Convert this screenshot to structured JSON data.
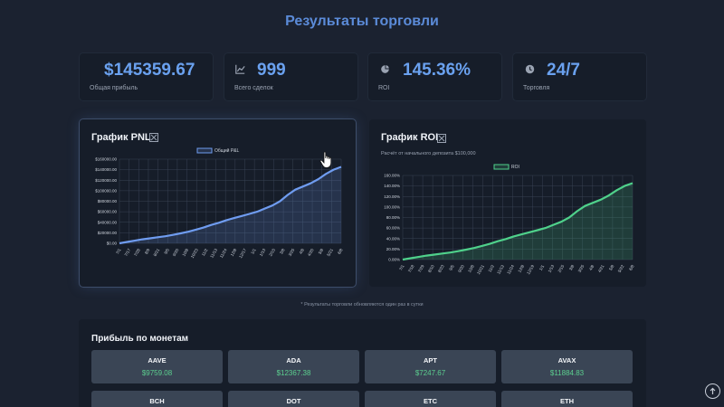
{
  "page": {
    "title": "Результаты торговли"
  },
  "stats": [
    {
      "icon": "dollar-icon",
      "value": "$145359.67",
      "label": "Общая прибыль"
    },
    {
      "icon": "bar-chart-icon",
      "value": "999",
      "label": "Всего сделок"
    },
    {
      "icon": "pie-chart-icon",
      "value": "145.36%",
      "label": "ROI"
    },
    {
      "icon": "clock-icon",
      "value": "24/7",
      "label": "Торговля"
    }
  ],
  "pnl_chart": {
    "title": "График PNL",
    "legend": "Общий P&L",
    "y_ticks": [
      "$0.00",
      "$20000.00",
      "$40000.00",
      "$60000.00",
      "$80000.00",
      "$100000.00",
      "$120000.00",
      "$140000.00",
      "$160000.00"
    ],
    "x_ticks": [
      "7/1",
      "7/17",
      "7/28",
      "8/9",
      "8/21",
      "9/5",
      "9/20",
      "10/8",
      "10/23",
      "11/2",
      "11/13",
      "11/24",
      "12/8",
      "12/17",
      "1/1",
      "1/13",
      "2/15",
      "3/8",
      "3/25",
      "4/8",
      "4/20",
      "5/8",
      "5/21",
      "6/8"
    ]
  },
  "roi_chart": {
    "title": "График ROI",
    "subtitle": "Расчёт от начального депозита $100,000",
    "legend": "ROI",
    "y_ticks": [
      "0.00%",
      "20.00%",
      "40.00%",
      "60.00%",
      "80.00%",
      "100.00%",
      "120.00%",
      "140.00%",
      "160.00%"
    ],
    "x_ticks": [
      "7/1",
      "7/18",
      "7/29",
      "8/10",
      "8/23",
      "9/5",
      "9/20",
      "10/8",
      "10/21",
      "11/2",
      "11/13",
      "11/24",
      "12/8",
      "12/19",
      "1/1",
      "1/13",
      "2/15",
      "3/8",
      "3/25",
      "4/8",
      "4/21",
      "5/8",
      "5/22",
      "6/8"
    ]
  },
  "chart_data": [
    {
      "type": "area",
      "title": "График PNL",
      "series": [
        {
          "name": "Общий P&L",
          "values": [
            0,
            2500,
            5000,
            7500,
            9500,
            11500,
            13500,
            16000,
            19000,
            22000,
            26000,
            30000,
            35000,
            39000,
            44000,
            48000,
            52000,
            56000,
            60000,
            66000,
            72000,
            80000,
            92000,
            102000,
            108000,
            114000,
            122000,
            132000,
            140000,
            145360
          ]
        }
      ],
      "ylim": [
        0,
        160000
      ],
      "grid": true,
      "legend_position": "top"
    },
    {
      "type": "area",
      "title": "График ROI",
      "subtitle": "Расчёт от начального депозита $100,000",
      "series": [
        {
          "name": "ROI",
          "values": [
            0,
            2.5,
            5,
            7.5,
            9.5,
            11.5,
            13.5,
            16,
            19,
            22,
            26,
            30,
            35,
            39,
            44,
            48,
            52,
            56,
            60,
            66,
            72,
            80,
            92,
            102,
            108,
            114,
            122,
            132,
            140,
            145.36
          ]
        }
      ],
      "ylim": [
        0,
        160
      ],
      "grid": true,
      "legend_position": "top"
    }
  ],
  "coins": {
    "title": "Прибыль по монетам",
    "items": [
      {
        "name": "AAVE",
        "value": "$9759.08"
      },
      {
        "name": "ADA",
        "value": "$12367.38"
      },
      {
        "name": "APT",
        "value": "$7247.67"
      },
      {
        "name": "AVAX",
        "value": "$11884.83"
      },
      {
        "name": "BCH",
        "value": ""
      },
      {
        "name": "DOT",
        "value": ""
      },
      {
        "name": "ETC",
        "value": ""
      },
      {
        "name": "ETH",
        "value": ""
      }
    ]
  },
  "footnote": "* Результаты торговли обновляются один раз в сутки",
  "colors": {
    "accent": "#5b8bd8",
    "pnl_line": "#6f9cf0",
    "roi_line": "#4fd18b",
    "positive": "#5ccf8f"
  }
}
